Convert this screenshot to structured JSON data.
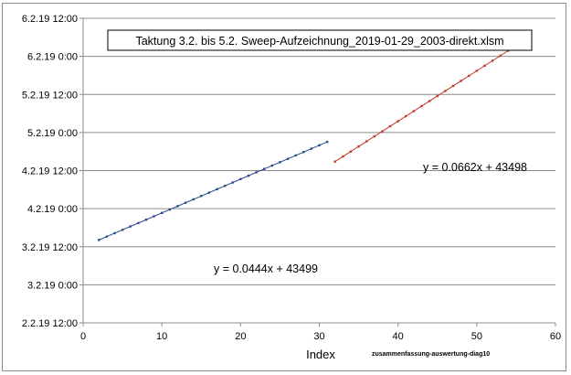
{
  "chart_data": {
    "type": "scatter",
    "title": "Taktung 3.2. bis 5.2.   Sweep-Aufzeichnung_2019-01-29_2003-direkt.xlsm",
    "xlabel": "Index",
    "ylabel": "",
    "xlim": [
      0,
      60
    ],
    "ylim": [
      43498,
      43502
    ],
    "x_ticks": [
      0,
      10,
      20,
      30,
      40,
      50,
      60
    ],
    "y_ticks": [
      {
        "value": 43498.0,
        "label": "2.2.19 12:00"
      },
      {
        "value": 43498.5,
        "label": "3.2.19 0:00"
      },
      {
        "value": 43499.0,
        "label": "3.2.19 12:00"
      },
      {
        "value": 43499.5,
        "label": "4.2.19 0:00"
      },
      {
        "value": 43500.0,
        "label": "4.2.19 12:00"
      },
      {
        "value": 43500.5,
        "label": "5.2.19 0:00"
      },
      {
        "value": 43501.0,
        "label": "5.2.19 12:00"
      },
      {
        "value": 43501.5,
        "label": "6.2.19 0:00"
      },
      {
        "value": 43502.0,
        "label": "6.2.19 12:00"
      }
    ],
    "grid": "horizontal",
    "series": [
      {
        "color": "#2b4a8c",
        "x": [
          2,
          3,
          4,
          5,
          6,
          7,
          8,
          9,
          10,
          11,
          12,
          13,
          14,
          15,
          16,
          17,
          18,
          19,
          20,
          21,
          22,
          23,
          24,
          25,
          26,
          27,
          28,
          29,
          30,
          31
        ],
        "trendline": {
          "slope": 0.0444,
          "intercept": 43499,
          "x_range": [
            2,
            31
          ],
          "equation": "y = 0.0444x + 43499"
        }
      },
      {
        "color": "#c0392b",
        "x": [
          32,
          33,
          34,
          35,
          36,
          37,
          38,
          39,
          40,
          41,
          42,
          43,
          44,
          45,
          46,
          47,
          48,
          49,
          50,
          51,
          52,
          53,
          54,
          55
        ],
        "trendline": {
          "slope": 0.0662,
          "intercept": 43498,
          "x_range": [
            32,
            55
          ],
          "equation": "y = 0.0662x + 43498"
        }
      }
    ],
    "footnote": "zusammenfassung-auswertung-diag10"
  }
}
